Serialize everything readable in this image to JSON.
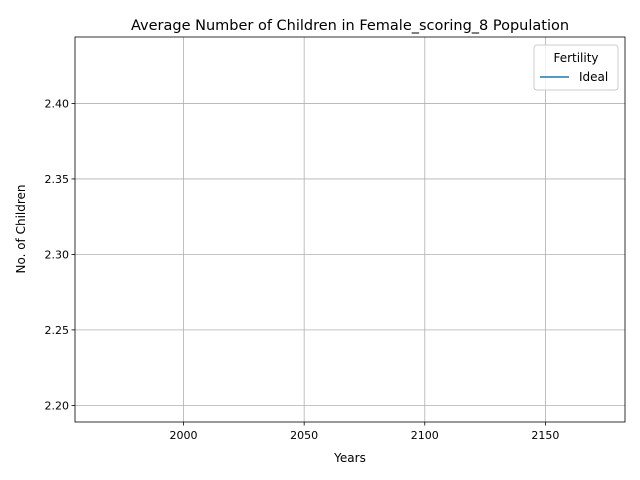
{
  "chart_data": {
    "type": "line",
    "title": "Average Number of Children in Female_scoring_8 Population",
    "xlabel": "Years",
    "ylabel": "No. of Children",
    "xlim": [
      1955,
      2183
    ],
    "ylim": [
      2.189,
      2.444
    ],
    "x_ticks": [
      2000,
      2050,
      2100,
      2150
    ],
    "y_ticks": [
      2.2,
      2.25,
      2.3,
      2.35,
      2.4
    ],
    "x_tick_labels": [
      "2000",
      "2050",
      "2100",
      "2150"
    ],
    "y_tick_labels": [
      "2.20",
      "2.25",
      "2.30",
      "2.35",
      "2.40"
    ],
    "grid": true,
    "legend": {
      "title": "Fertility",
      "position": "top-right"
    },
    "series": [
      {
        "name": "Ideal",
        "color": "#1f77b4",
        "x": [],
        "y": []
      }
    ]
  }
}
